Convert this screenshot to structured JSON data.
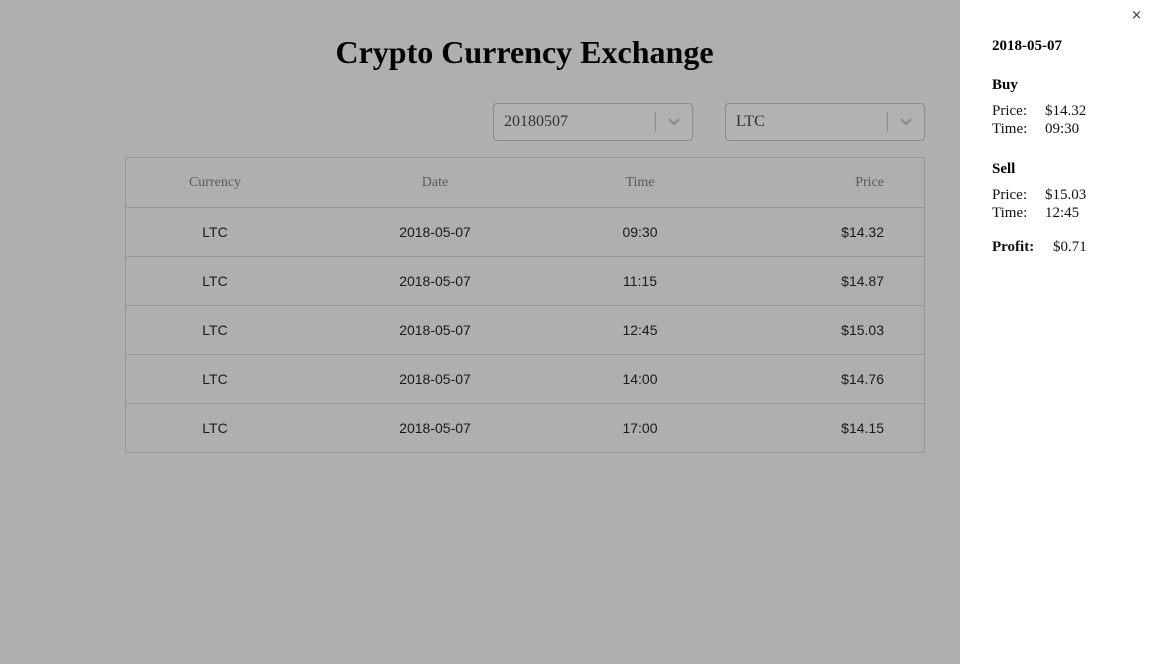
{
  "app": {
    "title": "Crypto Currency Exchange"
  },
  "filters": {
    "date": "20180507",
    "currency": "LTC"
  },
  "table": {
    "headers": [
      "Currency",
      "Date",
      "Time",
      "Price"
    ],
    "rows": [
      {
        "currency": "LTC",
        "date": "2018-05-07",
        "time": "09:30",
        "price": "$14.32"
      },
      {
        "currency": "LTC",
        "date": "2018-05-07",
        "time": "11:15",
        "price": "$14.87"
      },
      {
        "currency": "LTC",
        "date": "2018-05-07",
        "time": "12:45",
        "price": "$15.03"
      },
      {
        "currency": "LTC",
        "date": "2018-05-07",
        "time": "14:00",
        "price": "$14.76"
      },
      {
        "currency": "LTC",
        "date": "2018-05-07",
        "time": "17:00",
        "price": "$14.15"
      }
    ]
  },
  "panel": {
    "close_icon": "×",
    "date": "2018-05-07",
    "buy": {
      "heading": "Buy",
      "price_label": "Price:",
      "price": "$14.32",
      "time_label": "Time:",
      "time": "09:30"
    },
    "sell": {
      "heading": "Sell",
      "price_label": "Price:",
      "price": "$15.03",
      "time_label": "Time:",
      "time": "12:45"
    },
    "profit_label": "Profit:",
    "profit": "$0.71"
  },
  "icons": {
    "select_arrow": "chevron-down-icon",
    "close": "close-icon"
  },
  "colors": {
    "overlay": "#afafaf",
    "panel_bg": "#ffffff"
  }
}
